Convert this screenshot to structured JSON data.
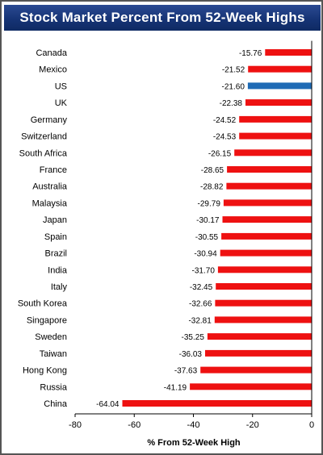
{
  "chart_data": {
    "type": "bar",
    "orientation": "horizontal",
    "title": "Stock Market Percent From 52-Week Highs",
    "xlabel": "% From 52-Week High",
    "ylabel": "",
    "xlim": [
      -80,
      0
    ],
    "x_ticks": [
      -80,
      -60,
      -40,
      -20,
      0
    ],
    "grid": false,
    "categories": [
      "Canada",
      "Mexico",
      "US",
      "UK",
      "Germany",
      "Switzerland",
      "South Africa",
      "France",
      "Australia",
      "Malaysia",
      "Japan",
      "Spain",
      "Brazil",
      "India",
      "Italy",
      "South Korea",
      "Singapore",
      "Sweden",
      "Taiwan",
      "Hong Kong",
      "Russia",
      "China"
    ],
    "values": [
      -15.76,
      -21.52,
      -21.6,
      -22.38,
      -24.52,
      -24.53,
      -26.15,
      -28.65,
      -28.82,
      -29.79,
      -30.17,
      -30.55,
      -30.94,
      -31.7,
      -32.45,
      -32.66,
      -32.81,
      -35.25,
      -36.03,
      -37.63,
      -41.19,
      -64.04
    ],
    "value_labels": [
      "-15.76",
      "-21.52",
      "-21.60",
      "-22.38",
      "-24.52",
      "-24.53",
      "-26.15",
      "-28.65",
      "-28.82",
      "-29.79",
      "-30.17",
      "-30.55",
      "-30.94",
      "-31.70",
      "-32.45",
      "-32.66",
      "-32.81",
      "-35.25",
      "-36.03",
      "-37.63",
      "-41.19",
      "-64.04"
    ],
    "highlight_category": "US",
    "colors": {
      "bar": "#ee1111",
      "highlight": "#1f6bb5",
      "title_bg": "#163476",
      "title_text": "#ffffff"
    }
  }
}
